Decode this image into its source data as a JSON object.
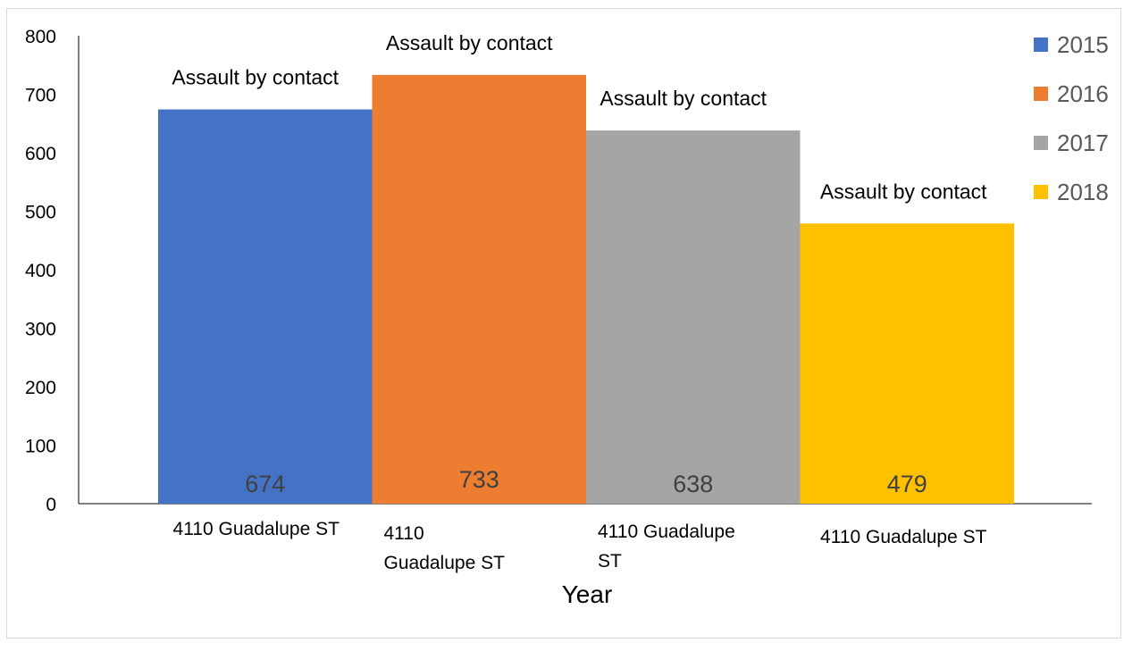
{
  "chart_data": {
    "type": "bar",
    "xlabel": "Year",
    "ylabel": "",
    "ylim": [
      0,
      800
    ],
    "yticks": [
      0,
      100,
      200,
      300,
      400,
      500,
      600,
      700,
      800
    ],
    "grid": false,
    "legend_position": "right",
    "series": [
      {
        "name": "2015",
        "category": [
          "4110 Guadalupe ST"
        ],
        "value": 674,
        "annotation": "Assault by contact",
        "color": "#4472c4"
      },
      {
        "name": "2016",
        "category": [
          "4110",
          "Guadalupe ST"
        ],
        "value": 733,
        "annotation": "Assault by contact",
        "color": "#ed7d31"
      },
      {
        "name": "2017",
        "category": [
          "4110 Guadalupe",
          "ST"
        ],
        "value": 638,
        "annotation": "Assault by contact",
        "color": "#a5a5a5"
      },
      {
        "name": "2018",
        "category": [
          "4110 Guadalupe ST"
        ],
        "value": 479,
        "annotation": "Assault by contact",
        "color": "#ffc000"
      }
    ]
  }
}
